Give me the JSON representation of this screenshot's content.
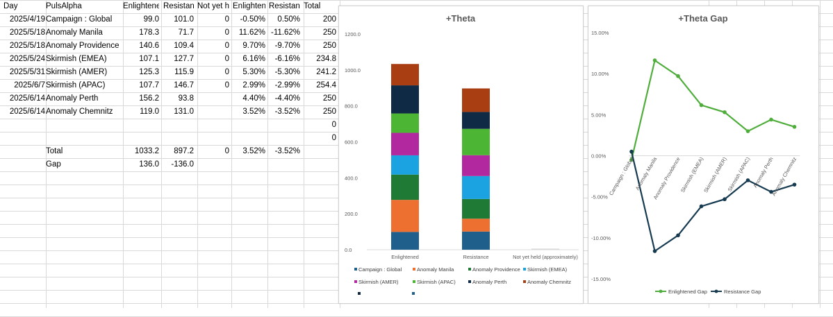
{
  "sheet": {
    "headers": [
      "Day",
      "PulsAlpha",
      "Enlightene",
      "Resistanc",
      "Not yet he",
      "Enlightene",
      "Resistanc",
      "Total"
    ],
    "rows": [
      [
        "2025/4/19",
        "Campaign : Global",
        "99.0",
        "101.0",
        "0",
        "-0.50%",
        "0.50%",
        "200"
      ],
      [
        "2025/5/18",
        "Anomaly Manila",
        "178.3",
        "71.7",
        "0",
        "11.62%",
        "-11.62%",
        "250"
      ],
      [
        "2025/5/18",
        "Anomaly Providence",
        "140.6",
        "109.4",
        "0",
        "9.70%",
        "-9.70%",
        "250"
      ],
      [
        "2025/5/24",
        "Skirmish (EMEA)",
        "107.1",
        "127.7",
        "0",
        "6.16%",
        "-6.16%",
        "234.8"
      ],
      [
        "2025/5/31",
        "Skirmish (AMER)",
        "125.3",
        "115.9",
        "0",
        "5.30%",
        "-5.30%",
        "241.2"
      ],
      [
        "2025/6/7",
        "Skirmish (APAC)",
        "107.7",
        "146.7",
        "0",
        "2.99%",
        "-2.99%",
        "254.4"
      ],
      [
        "2025/6/14",
        "Anomaly Perth",
        "156.2",
        "93.8",
        "",
        "4.40%",
        "-4.40%",
        "250"
      ],
      [
        "2025/6/14",
        "Anomaly Chemnitz",
        "119.0",
        "131.0",
        "",
        "3.52%",
        "-3.52%",
        "250"
      ],
      [
        "",
        "",
        "",
        "",
        "",
        "",
        "",
        "0"
      ],
      [
        "",
        "",
        "",
        "",
        "",
        "",
        "",
        "0"
      ],
      [
        "",
        "Total",
        "1033.2",
        "897.2",
        "0",
        "3.52%",
        "-3.52%",
        ""
      ],
      [
        "",
        "Gap",
        "136.0",
        "-136.0",
        "",
        "",
        "",
        ""
      ]
    ]
  },
  "chart_data": [
    {
      "type": "bar",
      "stacked": true,
      "title": "+Theta",
      "categories": [
        "Enlightened",
        "Resistance",
        "Not yet held (approximately)"
      ],
      "ylim": [
        0,
        1200
      ],
      "yticks": [
        "0.0",
        "200.0",
        "400.0",
        "600.0",
        "800.0",
        "1000.0",
        "1200.0"
      ],
      "grid": false,
      "legend_position": "bottom",
      "series": [
        {
          "name": "Campaign : Global",
          "color": "#1f5f8b",
          "values": [
            99.0,
            101.0,
            0
          ]
        },
        {
          "name": "Anomaly Manila",
          "color": "#ed7030",
          "values": [
            178.3,
            71.7,
            0
          ]
        },
        {
          "name": "Anomaly Providence",
          "color": "#1e7a35",
          "values": [
            140.6,
            109.4,
            0
          ]
        },
        {
          "name": "Skirmish (EMEA)",
          "color": "#1aa3e0",
          "values": [
            107.1,
            127.7,
            0
          ]
        },
        {
          "name": "Skirmish (AMER)",
          "color": "#b2289f",
          "values": [
            125.3,
            115.9,
            0
          ]
        },
        {
          "name": "Skirmish (APAC)",
          "color": "#4db534",
          "values": [
            107.7,
            146.7,
            0
          ]
        },
        {
          "name": "Anomaly Perth",
          "color": "#0e2a45",
          "values": [
            156.2,
            93.8,
            0
          ]
        },
        {
          "name": "Anomaly Chemnitz",
          "color": "#a83e12",
          "values": [
            119.0,
            131.0,
            0
          ]
        }
      ],
      "not_held_marker_value": 6
    },
    {
      "type": "line",
      "title": "+Theta Gap",
      "categories": [
        "Campaign : Global",
        "Anomaly Manila",
        "Anomaly Providence",
        "Skirmish (EMEA)",
        "Skirmish (AMER)",
        "Skirmish (APAC)",
        "Anomaly Perth",
        "Anomaly Chemnitz"
      ],
      "ylim": [
        -15,
        15
      ],
      "yticks": [
        "-15.00%",
        "-10.00%",
        "-5.00%",
        "0.00%",
        "5.00%",
        "10.00%",
        "15.00%"
      ],
      "grid": false,
      "legend_position": "bottom",
      "series": [
        {
          "name": "Enlightened Gap",
          "color": "#4fae3b",
          "values": [
            -0.5,
            11.62,
            9.7,
            6.16,
            5.3,
            2.99,
            4.4,
            3.52
          ]
        },
        {
          "name": "Resistance Gap",
          "color": "#163a50",
          "values": [
            0.5,
            -11.62,
            -9.7,
            -6.16,
            -5.3,
            -2.99,
            -4.4,
            -3.52
          ]
        }
      ]
    }
  ]
}
